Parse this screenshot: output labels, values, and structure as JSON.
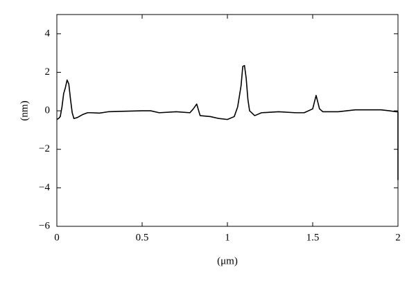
{
  "chart_data": {
    "type": "line",
    "x": [
      0,
      0.01,
      0.02,
      0.03,
      0.04,
      0.05,
      0.06,
      0.07,
      0.08,
      0.09,
      0.1,
      0.12,
      0.15,
      0.18,
      0.2,
      0.25,
      0.3,
      0.4,
      0.5,
      0.55,
      0.6,
      0.7,
      0.78,
      0.8,
      0.82,
      0.84,
      0.9,
      0.95,
      1.0,
      1.04,
      1.06,
      1.08,
      1.09,
      1.1,
      1.11,
      1.12,
      1.13,
      1.16,
      1.2,
      1.3,
      1.4,
      1.45,
      1.5,
      1.52,
      1.54,
      1.56,
      1.65,
      1.7,
      1.75,
      1.8,
      1.9,
      1.95,
      1.99,
      2.0,
      2.0
    ],
    "series": [
      {
        "color": "#000000",
        "values": [
          -0.45,
          -0.4,
          -0.3,
          0.2,
          0.9,
          1.2,
          1.6,
          1.4,
          0.6,
          -0.1,
          -0.4,
          -0.35,
          -0.2,
          -0.1,
          -0.1,
          -0.12,
          -0.05,
          -0.02,
          0.0,
          0.0,
          -0.1,
          -0.05,
          -0.1,
          0.1,
          0.35,
          -0.25,
          -0.3,
          -0.4,
          -0.45,
          -0.3,
          0.2,
          1.3,
          2.3,
          2.35,
          1.7,
          0.6,
          0.0,
          -0.25,
          -0.1,
          -0.05,
          -0.1,
          -0.1,
          0.1,
          0.8,
          0.1,
          -0.05,
          -0.05,
          0.0,
          0.05,
          0.05,
          0.05,
          0.0,
          -0.05,
          -0.05,
          -3.6
        ]
      }
    ],
    "xlabel": "(μm)",
    "ylabel": "(nm)",
    "xlim": [
      0,
      2
    ],
    "ylim": [
      -6,
      5
    ],
    "xticks": [
      0,
      0.5,
      1,
      1.5,
      2
    ],
    "yticks": [
      {
        "value": -6,
        "label": "−6"
      },
      {
        "value": -4,
        "label": "−4"
      },
      {
        "value": -2,
        "label": "−2"
      },
      0,
      2,
      4
    ],
    "grid": false
  }
}
